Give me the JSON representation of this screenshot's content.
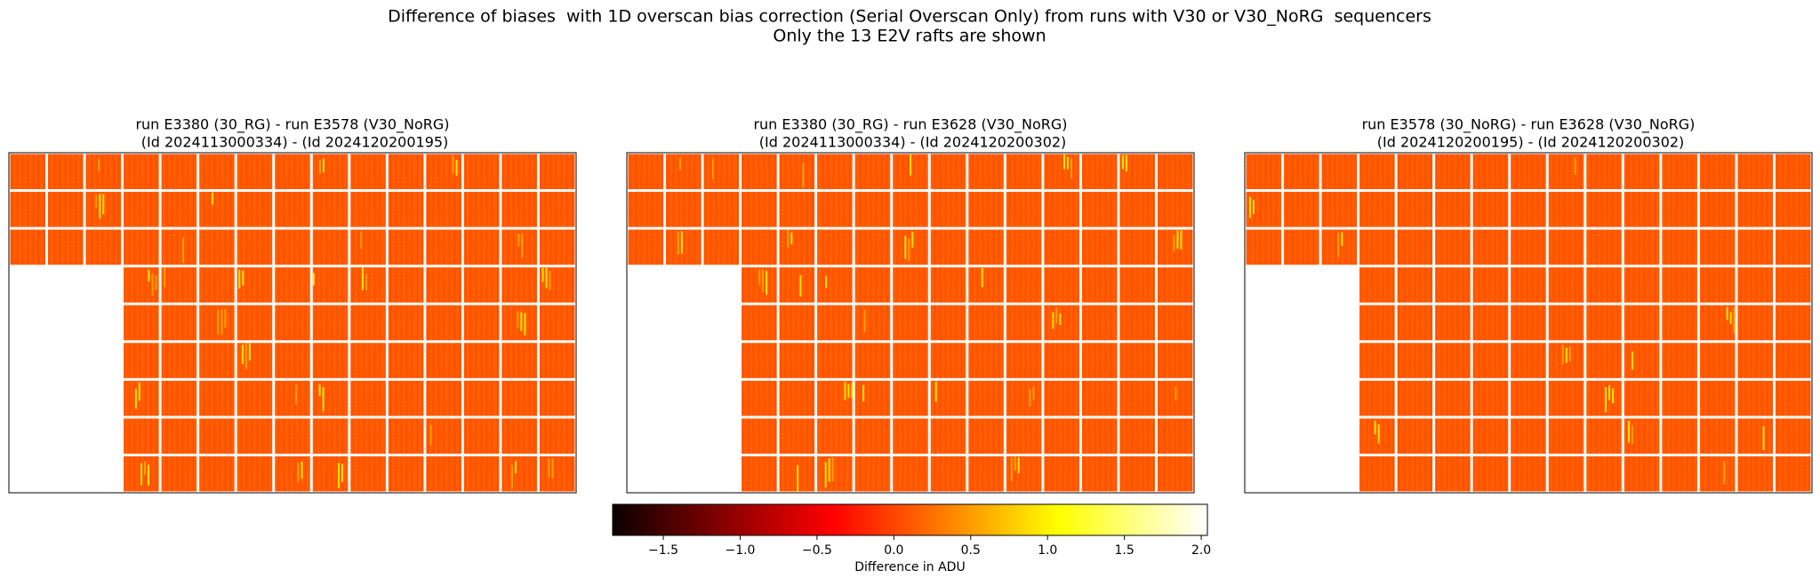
{
  "figure": {
    "title_lines": [
      "Difference of biases  with 1D overscan bias correction (Serial Overscan Only) from runs with V30 or V30_NoRG  sequencers",
      "Only the 13 E2V rafts are shown"
    ],
    "panels": [
      {
        "title_lines": [
          "run E3380 (30_RG) - run E3578 (V30_NoRG)",
          " (Id 2024113000334) - (Id 2024120200195)"
        ]
      },
      {
        "title_lines": [
          "run E3380 (30_RG) - run E3628 (V30_NoRG)",
          " (Id 2024113000334) - (Id 2024120200302)"
        ]
      },
      {
        "title_lines": [
          "run E3578 (30_NoRG) - run E3628 (V30_NoRG)",
          " (Id 2024120200195) - (Id 2024120200302)"
        ]
      }
    ],
    "colorbar": {
      "colormap": "hot",
      "lim": [
        -1.83,
        2.04
      ],
      "ticks": [
        {
          "value": -1.5,
          "label": "−1.5"
        },
        {
          "value": -1,
          "label": "−1.0"
        },
        {
          "value": -0.5,
          "label": "−0.5"
        },
        {
          "value": 0,
          "label": "0.0"
        },
        0.5,
        {
          "value": 1,
          "label": "1.0"
        },
        1.5,
        {
          "value": 2,
          "label": "2.0"
        }
      ],
      "label": "Difference in ADU"
    }
  }
}
